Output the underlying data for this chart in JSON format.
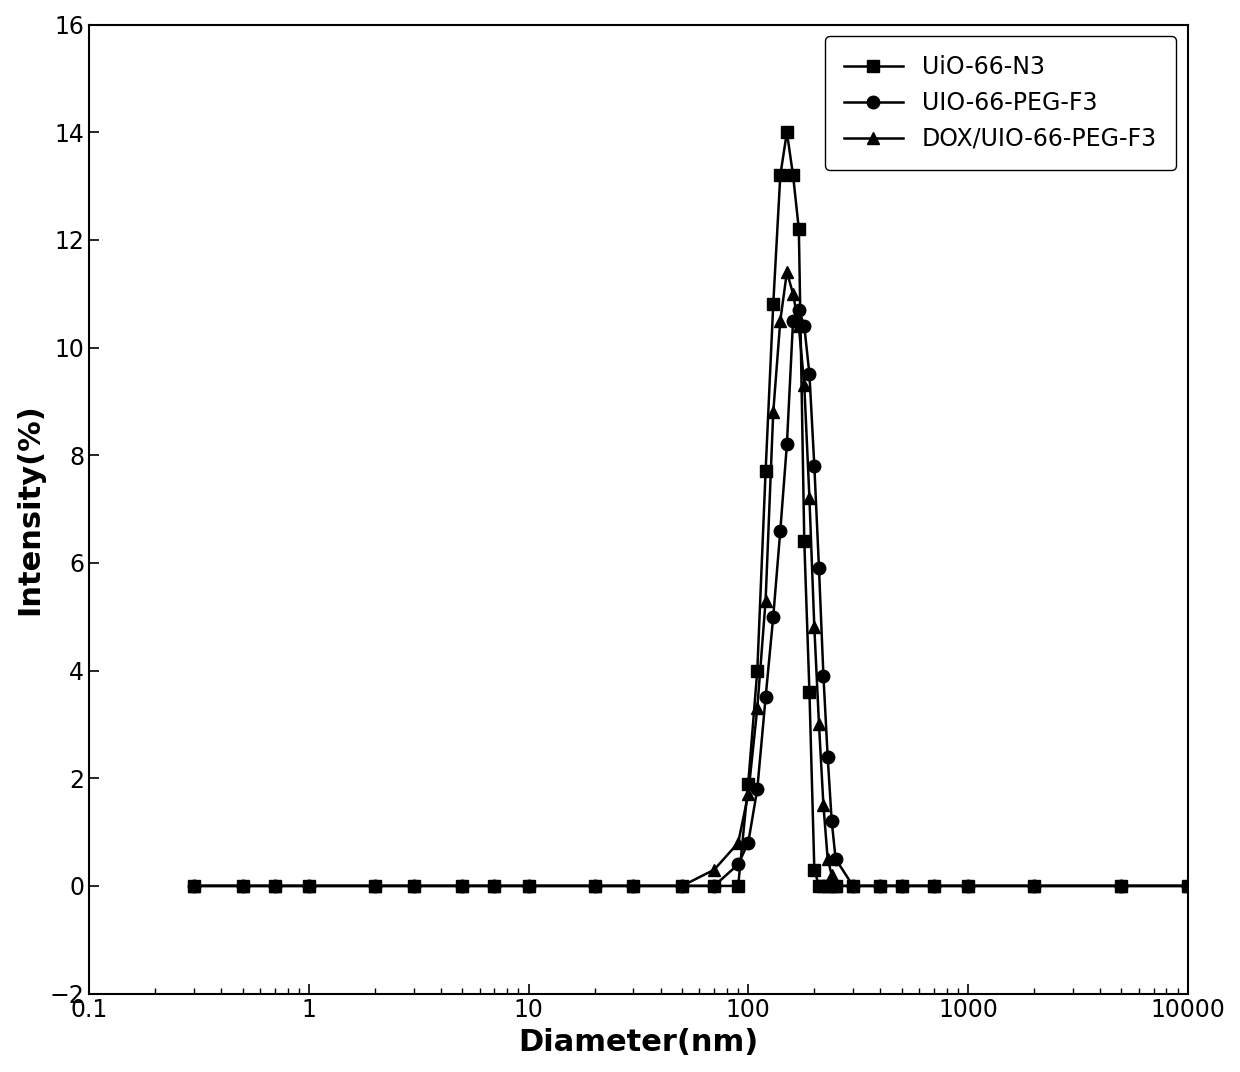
{
  "series": [
    {
      "label": "UiO-66-N3",
      "marker": "s",
      "x": [
        0.3,
        0.5,
        0.7,
        1,
        2,
        3,
        5,
        7,
        10,
        20,
        30,
        50,
        70,
        90,
        100,
        110,
        120,
        130,
        140,
        150,
        160,
        170,
        180,
        190,
        200,
        210,
        220,
        230,
        240,
        250,
        300,
        400,
        500,
        700,
        1000,
        2000,
        5000,
        10000
      ],
      "y": [
        0,
        0,
        0,
        0,
        0,
        0,
        0,
        0,
        0,
        0,
        0,
        0,
        0,
        0,
        1.9,
        4.0,
        7.7,
        10.8,
        13.2,
        14.0,
        13.2,
        12.2,
        6.4,
        3.6,
        0.3,
        0,
        0,
        0,
        0,
        0,
        0,
        0,
        0,
        0,
        0,
        0,
        0,
        0
      ]
    },
    {
      "label": "UIO-66-PEG-F3",
      "marker": "o",
      "x": [
        0.3,
        0.5,
        0.7,
        1,
        2,
        3,
        5,
        7,
        10,
        20,
        30,
        50,
        70,
        90,
        100,
        110,
        120,
        130,
        140,
        150,
        160,
        170,
        180,
        190,
        200,
        210,
        220,
        230,
        240,
        250,
        300,
        400,
        500,
        700,
        1000,
        2000,
        5000,
        10000
      ],
      "y": [
        0,
        0,
        0,
        0,
        0,
        0,
        0,
        0,
        0,
        0,
        0,
        0,
        0,
        0.4,
        0.8,
        1.8,
        3.5,
        5.0,
        6.6,
        8.2,
        10.5,
        10.7,
        10.4,
        9.5,
        7.8,
        5.9,
        3.9,
        2.4,
        1.2,
        0.5,
        0,
        0,
        0,
        0,
        0,
        0,
        0,
        0
      ]
    },
    {
      "label": "DOX/UIO-66-PEG-F3",
      "marker": "^",
      "x": [
        0.3,
        0.5,
        0.7,
        1,
        2,
        3,
        5,
        7,
        10,
        20,
        30,
        50,
        70,
        90,
        100,
        110,
        120,
        130,
        140,
        150,
        160,
        170,
        180,
        190,
        200,
        210,
        220,
        230,
        240,
        250,
        300,
        400,
        500,
        700,
        1000,
        2000,
        5000,
        10000
      ],
      "y": [
        0,
        0,
        0,
        0,
        0,
        0,
        0,
        0,
        0,
        0,
        0,
        0,
        0.3,
        0.8,
        1.7,
        3.3,
        5.3,
        8.8,
        10.5,
        11.4,
        11.0,
        10.4,
        9.3,
        7.2,
        4.8,
        3.0,
        1.5,
        0.5,
        0.2,
        0,
        0,
        0,
        0,
        0,
        0,
        0,
        0,
        0
      ]
    }
  ],
  "xlabel": "Diameter(nm)",
  "ylabel": "Intensity(%)",
  "xlim": [
    0.3,
    10000
  ],
  "ylim": [
    -2,
    16
  ],
  "yticks": [
    -2,
    0,
    2,
    4,
    6,
    8,
    10,
    12,
    14,
    16
  ],
  "xticks": [
    0.1,
    1,
    10,
    100,
    1000,
    10000
  ],
  "xtick_labels": [
    "0.1",
    "1",
    "10",
    "100",
    "1000",
    "10000"
  ],
  "line_color": "#000000",
  "marker_color": "#000000",
  "background_color": "#ffffff",
  "legend_loc": "upper right",
  "fontsize_labels": 22,
  "fontsize_ticks": 17,
  "fontsize_legend": 17,
  "linewidth": 1.8,
  "markersize": 9
}
